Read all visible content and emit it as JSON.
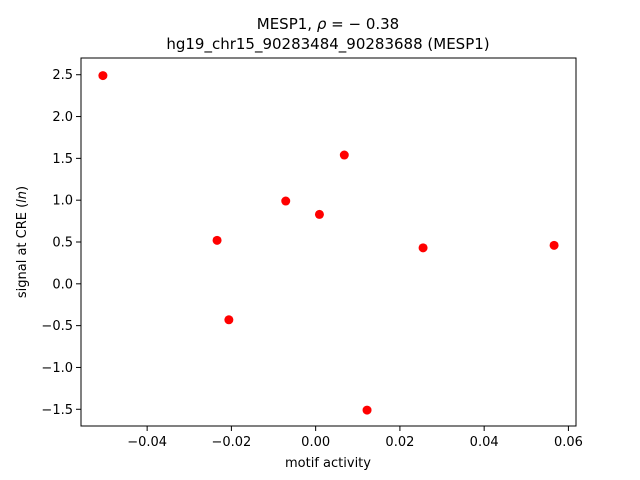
{
  "chart_data": {
    "type": "scatter",
    "title_line1": "MESP1, ρ = − 0.38",
    "title_line2": "hg19_chr15_90283484_90283688 (MESP1)",
    "xlabel": "motif activity",
    "ylabel": "signal at CRE (ln)",
    "xlim": [
      -0.0557,
      0.0618
    ],
    "ylim": [
      -1.7,
      2.7
    ],
    "xticks": [
      -0.04,
      -0.02,
      0.0,
      0.02,
      0.04,
      0.06
    ],
    "xtick_labels": [
      "−0.04",
      "−0.02",
      "0.00",
      "0.02",
      "0.04",
      "0.06"
    ],
    "yticks": [
      -1.5,
      -1.0,
      -0.5,
      0.0,
      0.5,
      1.0,
      1.5,
      2.0,
      2.5
    ],
    "ytick_labels": [
      "−1.5",
      "−1.0",
      "−0.5",
      "0.0",
      "0.5",
      "1.0",
      "1.5",
      "2.0",
      "2.5"
    ],
    "grid": false,
    "marker_color": "#ff0000",
    "points": [
      {
        "x": -0.0505,
        "y": 2.49
      },
      {
        "x": -0.0234,
        "y": 0.52
      },
      {
        "x": -0.0206,
        "y": -0.43
      },
      {
        "x": -0.0071,
        "y": 0.99
      },
      {
        "x": 0.0009,
        "y": 0.83
      },
      {
        "x": 0.0068,
        "y": 1.54
      },
      {
        "x": 0.0122,
        "y": -1.51
      },
      {
        "x": 0.0255,
        "y": 0.43
      },
      {
        "x": 0.0566,
        "y": 0.46
      }
    ]
  }
}
